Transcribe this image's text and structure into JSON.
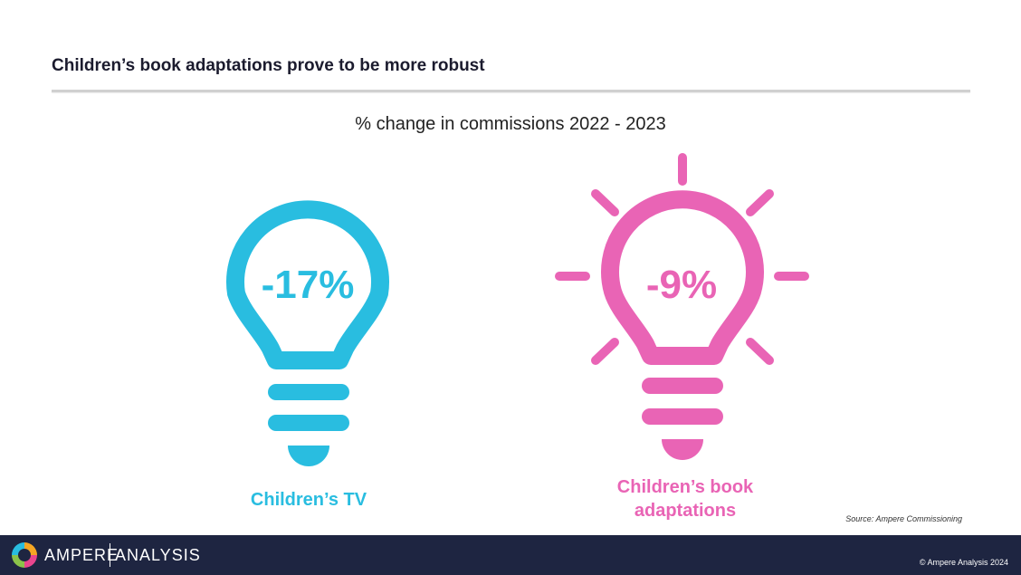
{
  "slide": {
    "title": "Children’s book adaptations prove to be more robust"
  },
  "chart_data": {
    "type": "pictogram",
    "title": "% change in commissions 2022 - 2023",
    "categories": [
      "Children’s TV",
      "Children’s book adaptations"
    ],
    "values": [
      -17,
      -9
    ],
    "value_labels": [
      "-17%",
      "-9%"
    ],
    "label_lines": [
      [
        "Children’s TV"
      ],
      [
        "Children’s book",
        "adaptations"
      ]
    ],
    "colors": [
      "#29bde0",
      "#e964b5"
    ],
    "icon": "lightbulb-icon",
    "highlighted_category": "Children’s book adaptations"
  },
  "source": "Source: Ampere Commissioning",
  "footer": {
    "brand_primary": "AMPERE",
    "brand_secondary": "ANALYSIS",
    "copyright": "© Ampere Analysis 2024",
    "logo_icon": "ampere-logo-icon",
    "background": "#1e2541"
  }
}
